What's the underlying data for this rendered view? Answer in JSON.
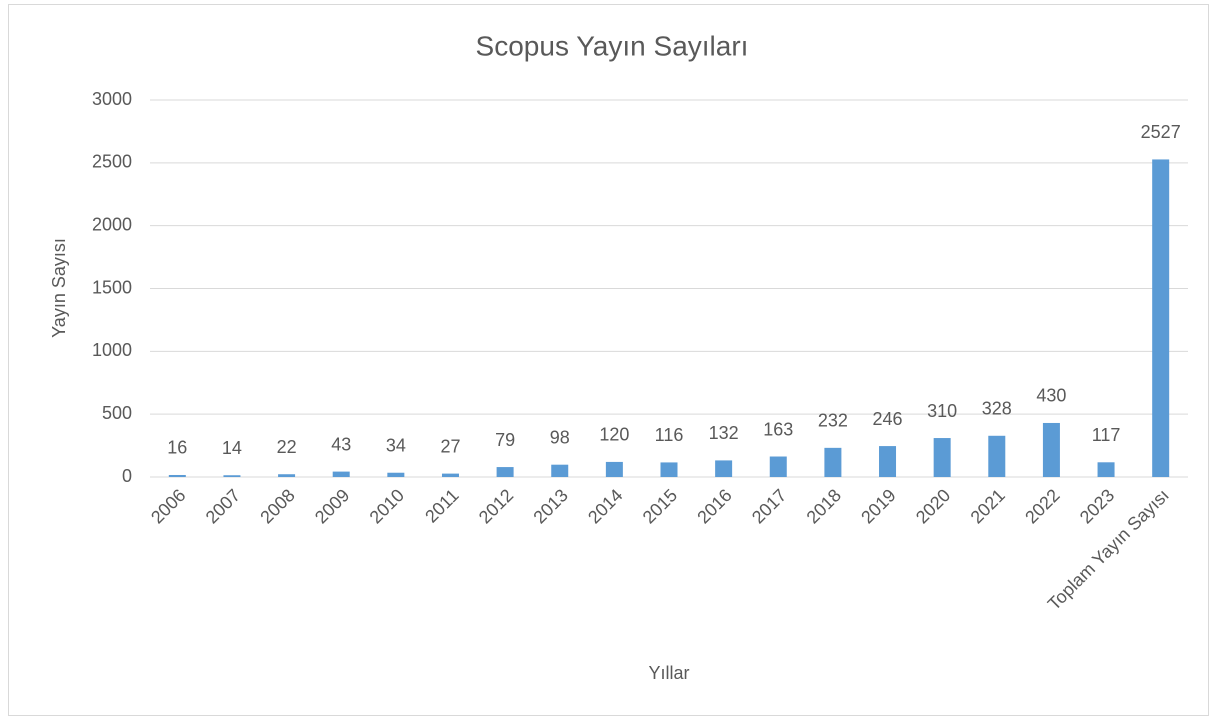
{
  "chart_data": {
    "type": "bar",
    "title": "Scopus Yayın Sayıları",
    "x_label": "Yıllar",
    "y_label": "Yayın Sayısı",
    "categories": [
      "2006",
      "2007",
      "2008",
      "2009",
      "2010",
      "2011",
      "2012",
      "2013",
      "2014",
      "2015",
      "2016",
      "2017",
      "2018",
      "2019",
      "2020",
      "2021",
      "2022",
      "2023",
      "Toplam Yayın Sayısı"
    ],
    "values": [
      16,
      14,
      22,
      43,
      34,
      27,
      79,
      98,
      120,
      116,
      132,
      163,
      232,
      246,
      310,
      328,
      430,
      117,
      2527
    ],
    "color": "#5b9bd5",
    "ylim": [
      0,
      3000
    ],
    "yticks": [
      0,
      500,
      1000,
      1500,
      2000,
      2500,
      3000
    ],
    "grid": true
  }
}
